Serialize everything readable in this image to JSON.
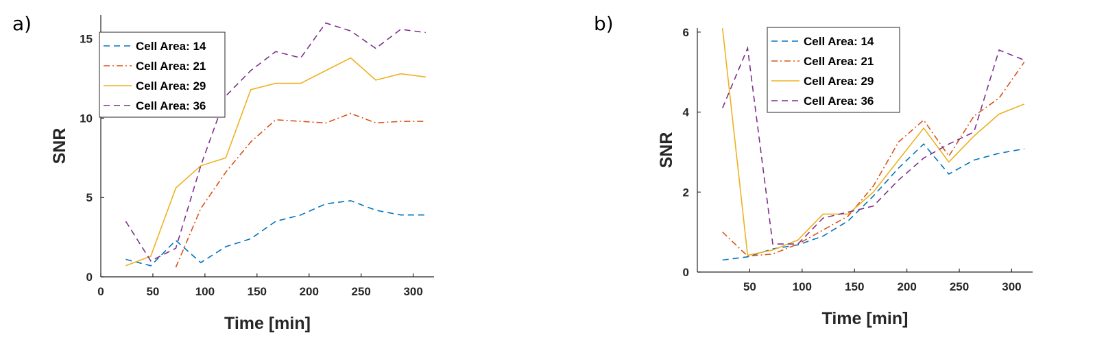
{
  "chart_data": [
    {
      "panel_label": "a)",
      "type": "line",
      "xlabel": "Time [min]",
      "ylabel": "SNR",
      "xlim": [
        0,
        320
      ],
      "ylim": [
        0,
        16.5
      ],
      "xticks": [
        0,
        50,
        100,
        150,
        200,
        250,
        300
      ],
      "yticks": [
        0,
        5,
        10,
        15
      ],
      "legend_placement": "top-left",
      "series": [
        {
          "name": "Cell Area: 14",
          "color": "#0072BD",
          "dash": "dashed",
          "x": [
            24,
            48,
            72,
            96,
            120,
            144,
            168,
            192,
            216,
            240,
            264,
            288,
            312
          ],
          "y": [
            1.1,
            0.7,
            2.3,
            0.9,
            1.9,
            2.4,
            3.5,
            3.9,
            4.6,
            4.8,
            4.2,
            3.9,
            3.9
          ]
        },
        {
          "name": "Cell Area: 21",
          "color": "#D95319",
          "dash": "dashdot",
          "x": [
            72,
            96,
            120,
            144,
            168,
            192,
            216,
            240,
            264,
            288,
            312
          ],
          "y": [
            0.6,
            4.3,
            6.6,
            8.5,
            9.9,
            9.8,
            9.7,
            10.3,
            9.7,
            9.8,
            9.8
          ]
        },
        {
          "name": "Cell Area: 29",
          "color": "#EDB120",
          "dash": "solid",
          "x": [
            24,
            48,
            72,
            96,
            120,
            144,
            168,
            192,
            216,
            240,
            264,
            288,
            312
          ],
          "y": [
            0.7,
            1.3,
            5.6,
            7.0,
            7.5,
            11.8,
            12.2,
            12.2,
            13.0,
            13.8,
            12.4,
            12.8,
            12.6
          ]
        },
        {
          "name": "Cell Area: 36",
          "color": "#7E2F8E",
          "dash": "dashed",
          "x": [
            24,
            48,
            72,
            96,
            120,
            144,
            168,
            192,
            216,
            240,
            264,
            288,
            312
          ],
          "y": [
            3.5,
            1.0,
            1.8,
            7.0,
            11.4,
            13.0,
            14.2,
            13.8,
            16.0,
            15.5,
            14.4,
            15.6,
            15.4
          ]
        }
      ]
    },
    {
      "panel_label": "b)",
      "type": "line",
      "xlabel": "Time [min]",
      "ylabel": "SNR",
      "xlim": [
        0,
        320
      ],
      "ylim": [
        0,
        6.1
      ],
      "xticks": [
        50,
        100,
        150,
        200,
        250,
        300
      ],
      "yticks": [
        0,
        2,
        4,
        6
      ],
      "legend_placement": "top-left",
      "series": [
        {
          "name": "Cell Area: 14",
          "color": "#0072BD",
          "dash": "dashed",
          "x": [
            24,
            48,
            72,
            96,
            120,
            144,
            168,
            192,
            216,
            240,
            264,
            288,
            312
          ],
          "y": [
            0.3,
            0.38,
            0.58,
            0.68,
            0.9,
            1.28,
            1.9,
            2.6,
            3.2,
            2.45,
            2.8,
            2.97,
            3.08
          ]
        },
        {
          "name": "Cell Area: 21",
          "color": "#D95319",
          "dash": "dashdot",
          "x": [
            24,
            48,
            72,
            96,
            120,
            144,
            168,
            192,
            216,
            240,
            264,
            288,
            312
          ],
          "y": [
            1.0,
            0.4,
            0.45,
            0.7,
            1.05,
            1.4,
            2.15,
            3.25,
            3.8,
            2.9,
            3.9,
            4.35,
            5.25
          ]
        },
        {
          "name": "Cell Area: 29",
          "color": "#EDB120",
          "dash": "solid",
          "x": [
            24,
            48,
            72,
            96,
            120,
            144,
            168,
            192,
            216,
            240,
            264,
            288,
            312
          ],
          "y": [
            6.1,
            0.42,
            0.55,
            0.8,
            1.45,
            1.45,
            2.0,
            2.8,
            3.6,
            2.75,
            3.4,
            3.95,
            4.2
          ]
        },
        {
          "name": "Cell Area: 36",
          "color": "#7E2F8E",
          "dash": "dashed",
          "x": [
            24,
            48,
            72,
            96,
            120,
            144,
            168,
            192,
            216,
            240,
            264,
            288,
            312
          ],
          "y": [
            4.1,
            5.6,
            0.7,
            0.7,
            1.35,
            1.5,
            1.65,
            2.3,
            2.85,
            3.2,
            3.5,
            5.55,
            5.3
          ]
        }
      ]
    }
  ]
}
